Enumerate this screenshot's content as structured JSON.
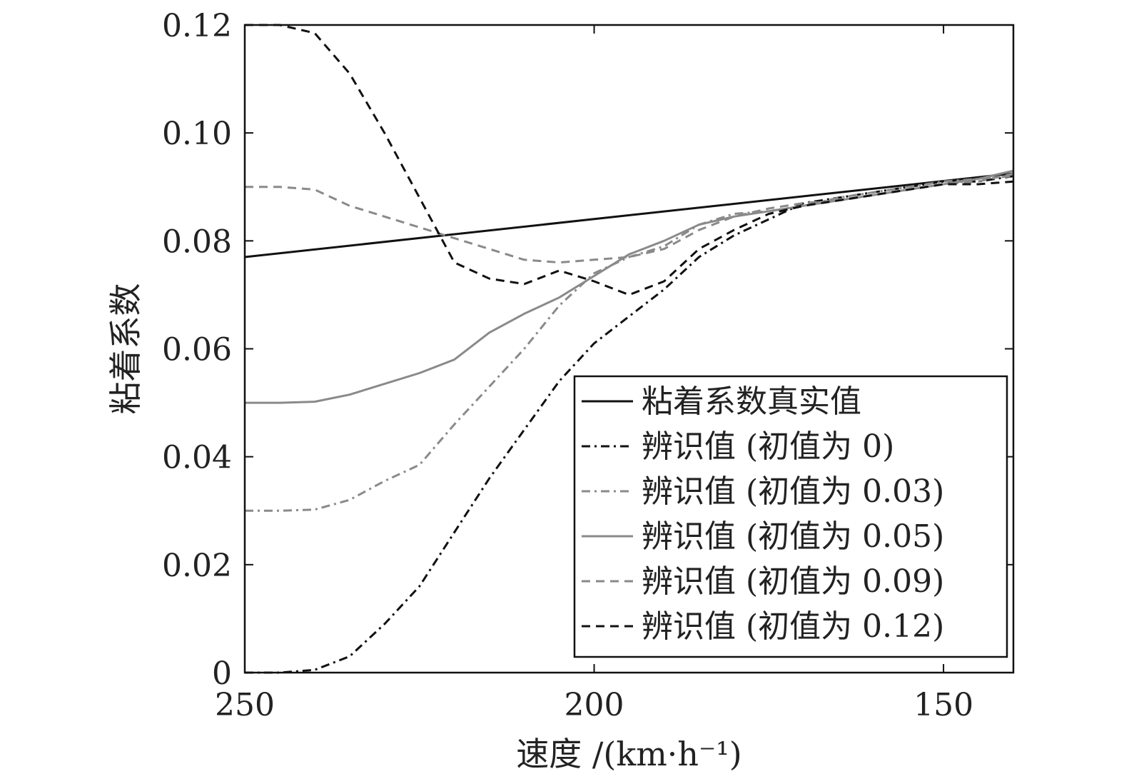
{
  "chart_data": {
    "type": "line",
    "title": "",
    "xlabel": "速度 /(km·h⁻¹)",
    "ylabel": "粘着系数",
    "xlim": [
      250,
      140
    ],
    "ylim": [
      0,
      0.12
    ],
    "x_reversed": true,
    "x_ticks": [
      250,
      200,
      150
    ],
    "x_tick_labels": [
      "250",
      "200",
      "150"
    ],
    "y_ticks": [
      0,
      0.02,
      0.04,
      0.06,
      0.08,
      0.1,
      0.12
    ],
    "y_tick_labels": [
      "0",
      "0.02",
      "0.04",
      "0.06",
      "0.08",
      "0.10",
      "0.12"
    ],
    "grid": false,
    "legend_position": "bottom-right",
    "series": [
      {
        "name": "粘着系数真实值",
        "color": "#111111",
        "style": "solid",
        "x": [
          250,
          140
        ],
        "y": [
          0.077,
          0.0925
        ]
      },
      {
        "name": "辨识值 (初值为 0)",
        "color": "#111111",
        "style": "dashdot",
        "x": [
          250,
          245,
          240,
          235,
          230,
          225,
          220,
          215,
          210,
          205,
          200,
          195,
          190,
          185,
          180,
          175,
          170,
          165,
          160,
          155,
          150,
          145,
          140
        ],
        "y": [
          0.0,
          0.0,
          0.0005,
          0.003,
          0.009,
          0.016,
          0.026,
          0.036,
          0.045,
          0.054,
          0.061,
          0.066,
          0.071,
          0.077,
          0.081,
          0.084,
          0.087,
          0.088,
          0.089,
          0.09,
          0.091,
          0.091,
          0.092
        ]
      },
      {
        "name": "辨识值 (初值为 0.03)",
        "color": "#8a8a8a",
        "style": "dashdot",
        "x": [
          250,
          245,
          240,
          235,
          230,
          225,
          220,
          215,
          210,
          205,
          200,
          195,
          190,
          185,
          180,
          175,
          170,
          165,
          160,
          155,
          150,
          145,
          140
        ],
        "y": [
          0.03,
          0.03,
          0.0302,
          0.032,
          0.0355,
          0.0385,
          0.046,
          0.053,
          0.06,
          0.068,
          0.074,
          0.077,
          0.079,
          0.083,
          0.085,
          0.0855,
          0.0865,
          0.088,
          0.089,
          0.09,
          0.091,
          0.0915,
          0.092
        ]
      },
      {
        "name": "辨识值 (初值为 0.05)",
        "color": "#8a8a8a",
        "style": "solid",
        "x": [
          250,
          245,
          240,
          235,
          230,
          225,
          220,
          215,
          210,
          205,
          200,
          195,
          190,
          185,
          180,
          175,
          170,
          165,
          160,
          155,
          150,
          145,
          140
        ],
        "y": [
          0.05,
          0.05,
          0.0502,
          0.0515,
          0.0535,
          0.0555,
          0.058,
          0.063,
          0.0665,
          0.0695,
          0.0735,
          0.0775,
          0.08,
          0.083,
          0.0845,
          0.0855,
          0.0865,
          0.0875,
          0.0885,
          0.0895,
          0.0905,
          0.0915,
          0.093
        ]
      },
      {
        "name": "辨识值 (初值为 0.09)",
        "color": "#8a8a8a",
        "style": "dashed",
        "x": [
          250,
          245,
          240,
          235,
          230,
          225,
          220,
          215,
          210,
          205,
          200,
          195,
          190,
          185,
          180,
          175,
          170,
          165,
          160,
          155,
          150,
          145,
          140
        ],
        "y": [
          0.09,
          0.09,
          0.0895,
          0.0865,
          0.0845,
          0.0825,
          0.0805,
          0.0785,
          0.0765,
          0.076,
          0.0765,
          0.077,
          0.0785,
          0.082,
          0.0845,
          0.086,
          0.087,
          0.0875,
          0.0885,
          0.0895,
          0.0905,
          0.091,
          0.0925
        ]
      },
      {
        "name": "辨识值 (初值为 0.12)",
        "color": "#111111",
        "style": "dashed",
        "x": [
          250,
          245,
          240,
          235,
          230,
          225,
          220,
          215,
          210,
          205,
          200,
          195,
          190,
          185,
          180,
          175,
          170,
          165,
          160,
          155,
          150,
          145,
          140
        ],
        "y": [
          0.12,
          0.12,
          0.1185,
          0.111,
          0.1,
          0.088,
          0.076,
          0.073,
          0.072,
          0.0745,
          0.0725,
          0.07,
          0.0725,
          0.0785,
          0.082,
          0.085,
          0.0865,
          0.0875,
          0.0885,
          0.0895,
          0.0905,
          0.0905,
          0.091
        ]
      }
    ]
  }
}
